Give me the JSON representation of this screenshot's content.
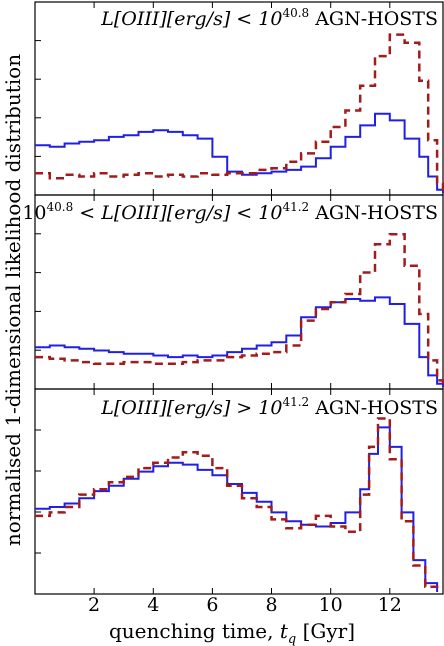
{
  "chart_data": {
    "type": "line",
    "ylabel": "normalised 1-dimensional likelihood distribution",
    "xlabel_prefix": "quenching time, ",
    "xlabel_var": "t",
    "xlabel_sub": "q",
    "xlabel_suffix": " [Gyr]",
    "xlim": [
      0,
      13.8
    ],
    "ylim": [
      0,
      1.0
    ],
    "xticks": [
      2,
      4,
      6,
      8,
      10,
      12
    ],
    "xtick_labels": [
      "2",
      "4",
      "6",
      "8",
      "10",
      "12"
    ],
    "series_colors": {
      "solid": "#1f1fe6",
      "dashed": "#a31b1b"
    },
    "panels": [
      {
        "title_math_1": "L[OIII][erg/s] < 10",
        "title_sup_1": "40.8",
        "title_math_2": "",
        "title_sup_2": "",
        "title_math_3": "",
        "title_text": "AGN-HOSTS",
        "solid": {
          "x": [
            0.0,
            0.5,
            1.0,
            1.5,
            2.0,
            2.5,
            3.0,
            3.5,
            4.0,
            4.5,
            5.0,
            5.5,
            6.0,
            6.5,
            7.0,
            7.5,
            8.0,
            8.5,
            9.0,
            9.5,
            10.0,
            10.5,
            11.0,
            11.5,
            12.0,
            12.5,
            13.0,
            13.3,
            13.6,
            13.8
          ],
          "y": [
            0.29,
            0.28,
            0.3,
            0.31,
            0.32,
            0.34,
            0.35,
            0.37,
            0.38,
            0.37,
            0.35,
            0.33,
            0.22,
            0.13,
            0.11,
            0.12,
            0.13,
            0.14,
            0.16,
            0.21,
            0.28,
            0.34,
            0.41,
            0.48,
            0.44,
            0.33,
            0.22,
            0.1,
            0.02,
            0.0
          ]
        },
        "dashed": {
          "x": [
            0.0,
            0.5,
            1.0,
            1.5,
            2.0,
            2.5,
            3.0,
            3.5,
            4.0,
            4.5,
            5.0,
            5.5,
            6.0,
            6.5,
            7.0,
            7.5,
            8.0,
            8.5,
            9.0,
            9.5,
            10.0,
            10.5,
            11.0,
            11.5,
            12.0,
            12.5,
            13.0,
            13.3,
            13.6,
            13.8
          ],
          "y": [
            0.12,
            0.09,
            0.11,
            0.1,
            0.12,
            0.1,
            0.11,
            0.12,
            0.1,
            0.11,
            0.1,
            0.12,
            0.11,
            0.12,
            0.12,
            0.14,
            0.15,
            0.19,
            0.24,
            0.31,
            0.4,
            0.5,
            0.65,
            0.83,
            0.96,
            0.91,
            0.68,
            0.32,
            0.06,
            0.0
          ]
        }
      },
      {
        "title_math_1": "10",
        "title_sup_1": "40.8",
        "title_math_2": " < L[OIII][erg/s] < 10",
        "title_sup_2": "41.2",
        "title_math_3": "",
        "title_text": "AGN-HOSTS",
        "solid": {
          "x": [
            0.0,
            0.5,
            1.0,
            1.5,
            2.0,
            2.5,
            3.0,
            3.5,
            4.0,
            4.5,
            5.0,
            5.5,
            6.0,
            6.5,
            7.0,
            7.5,
            8.0,
            8.5,
            9.0,
            9.5,
            10.0,
            10.5,
            11.0,
            11.5,
            12.0,
            12.5,
            13.0,
            13.3,
            13.6,
            13.8
          ],
          "y": [
            0.24,
            0.25,
            0.24,
            0.23,
            0.22,
            0.21,
            0.2,
            0.2,
            0.19,
            0.18,
            0.19,
            0.18,
            0.19,
            0.21,
            0.23,
            0.25,
            0.27,
            0.31,
            0.42,
            0.48,
            0.51,
            0.53,
            0.52,
            0.54,
            0.5,
            0.38,
            0.18,
            0.07,
            0.02,
            0.0
          ]
        },
        "dashed": {
          "x": [
            0.0,
            0.5,
            1.0,
            1.5,
            2.0,
            2.5,
            3.0,
            3.5,
            4.0,
            4.5,
            5.0,
            5.5,
            6.0,
            6.5,
            7.0,
            7.5,
            8.0,
            8.5,
            9.0,
            9.5,
            10.0,
            10.5,
            11.0,
            11.5,
            12.0,
            12.5,
            13.0,
            13.3,
            13.6,
            13.8
          ],
          "y": [
            0.18,
            0.17,
            0.16,
            0.15,
            0.14,
            0.14,
            0.15,
            0.15,
            0.14,
            0.14,
            0.15,
            0.16,
            0.16,
            0.18,
            0.19,
            0.2,
            0.21,
            0.25,
            0.4,
            0.47,
            0.51,
            0.56,
            0.69,
            0.86,
            0.92,
            0.73,
            0.44,
            0.16,
            0.04,
            0.0
          ]
        }
      },
      {
        "title_math_1": "L[OIII][erg/s] > 10",
        "title_sup_1": "41.2",
        "title_math_2": "",
        "title_sup_2": "",
        "title_math_3": "",
        "title_text": "AGN-HOSTS",
        "solid": {
          "x": [
            0.0,
            0.5,
            1.0,
            1.5,
            2.0,
            2.5,
            3.0,
            3.5,
            4.0,
            4.5,
            5.0,
            5.5,
            6.0,
            6.5,
            7.0,
            7.5,
            8.0,
            8.5,
            9.0,
            9.5,
            10.0,
            10.5,
            11.0,
            11.3,
            11.6,
            12.0,
            12.4,
            12.8,
            13.2,
            13.6
          ],
          "y": [
            0.47,
            0.48,
            0.5,
            0.53,
            0.57,
            0.6,
            0.64,
            0.68,
            0.71,
            0.73,
            0.72,
            0.69,
            0.66,
            0.61,
            0.56,
            0.51,
            0.45,
            0.4,
            0.38,
            0.37,
            0.39,
            0.45,
            0.58,
            0.78,
            0.93,
            0.82,
            0.45,
            0.18,
            0.05,
            0.0
          ]
        },
        "dashed": {
          "x": [
            0.0,
            0.5,
            1.0,
            1.5,
            2.0,
            2.5,
            3.0,
            3.5,
            4.0,
            4.5,
            5.0,
            5.5,
            6.0,
            6.5,
            7.0,
            7.5,
            8.0,
            8.5,
            9.0,
            9.5,
            10.0,
            10.5,
            11.0,
            11.3,
            11.6,
            12.0,
            12.4,
            12.8,
            13.2,
            13.6
          ],
          "y": [
            0.43,
            0.45,
            0.48,
            0.55,
            0.58,
            0.62,
            0.65,
            0.7,
            0.73,
            0.76,
            0.79,
            0.77,
            0.7,
            0.6,
            0.53,
            0.48,
            0.41,
            0.36,
            0.38,
            0.43,
            0.37,
            0.34,
            0.55,
            0.82,
            0.98,
            0.75,
            0.4,
            0.15,
            0.03,
            0.0
          ]
        }
      }
    ]
  }
}
